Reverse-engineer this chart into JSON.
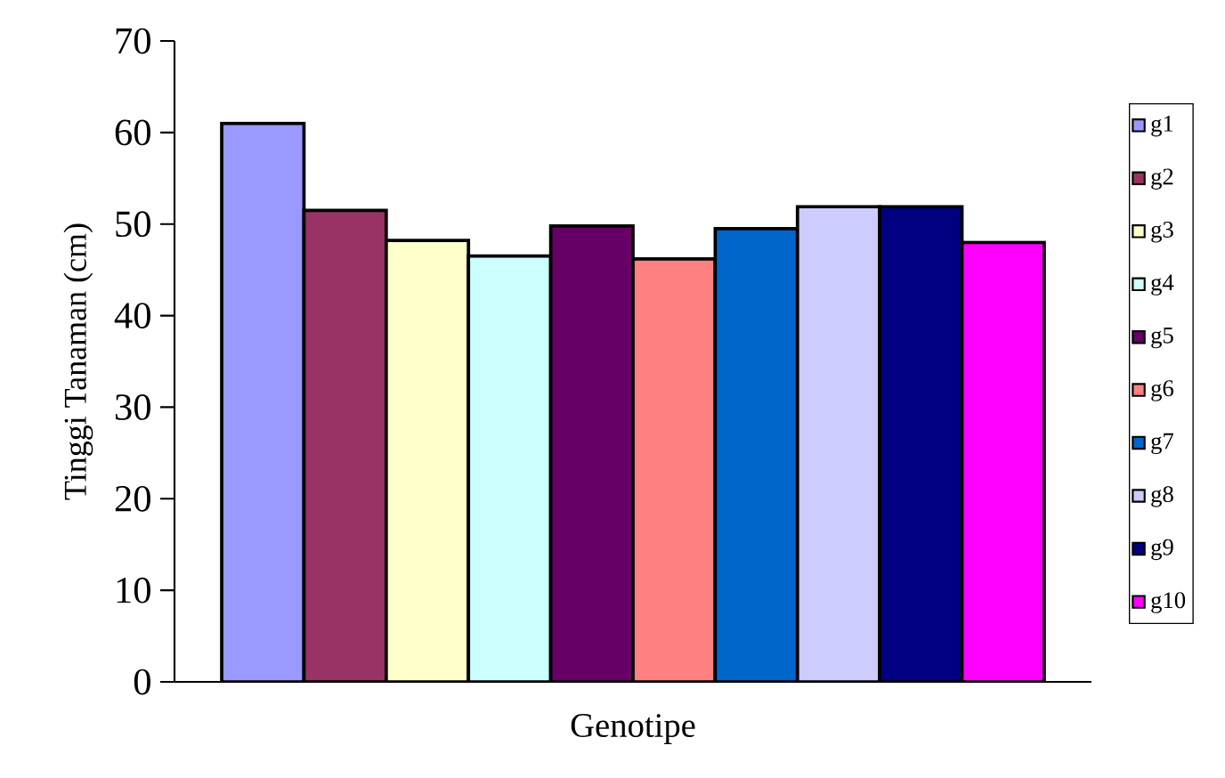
{
  "chart_data": {
    "type": "bar",
    "xlabel": "Genotipe",
    "ylabel": "Tinggi Tanaman (cm)",
    "categories": [
      null
    ],
    "series": [
      {
        "name": "g1",
        "color": "#9999ff",
        "values": [
          61.0
        ]
      },
      {
        "name": "g2",
        "color": "#993366",
        "values": [
          51.5
        ]
      },
      {
        "name": "g3",
        "color": "#ffffcc",
        "values": [
          48.2
        ]
      },
      {
        "name": "g4",
        "color": "#ccffff",
        "values": [
          46.5
        ]
      },
      {
        "name": "g5",
        "color": "#660066",
        "values": [
          49.8
        ]
      },
      {
        "name": "g6",
        "color": "#ff8080",
        "values": [
          46.2
        ]
      },
      {
        "name": "g7",
        "color": "#0066cc",
        "values": [
          49.5
        ]
      },
      {
        "name": "g8",
        "color": "#ccccff",
        "values": [
          51.9
        ]
      },
      {
        "name": "g9",
        "color": "#000080",
        "values": [
          51.9
        ]
      },
      {
        "name": "g10",
        "color": "#ff00ff",
        "values": [
          48.0
        ]
      }
    ],
    "ylim": [
      0,
      70
    ],
    "yticks": [
      0,
      10,
      20,
      30,
      40,
      50,
      60,
      70
    ],
    "legend": "right",
    "tick_labels": "y"
  }
}
